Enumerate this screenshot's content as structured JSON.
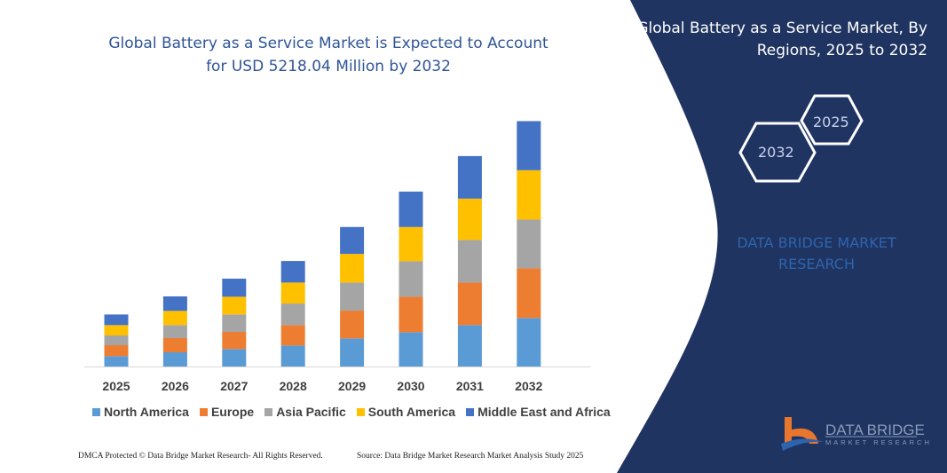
{
  "header": {
    "title": "Global Battery as a Service Market is Expected to Account for USD 5218.04 Million by 2032"
  },
  "side_panel": {
    "title": "Global Battery as a Service Market, By Regions, 2025 to 2032",
    "hex_start": "2025",
    "hex_end": "2032",
    "brand": "DATA BRIDGE MARKET RESEARCH",
    "logo_text": "DATA BRIDGE",
    "logo_sub": "MARKET RESEARCH",
    "background_color": "#1f3461"
  },
  "footer": {
    "left": "DMCA Protected © Data Bridge Market Research- All Rights Reserved.",
    "right": "Source: Data Bridge Market Research Market Analysis Study 2025"
  },
  "chart_data": {
    "type": "bar",
    "stacked": true,
    "title": "Global Battery as a Service Market is Expected to Account for USD 5218.04 Million by 2032",
    "unit": "USD Million",
    "categories": [
      "2025",
      "2026",
      "2027",
      "2028",
      "2029",
      "2030",
      "2031",
      "2032"
    ],
    "legend_position": "bottom",
    "grid": false,
    "series": [
      {
        "name": "North America",
        "color": "#5b9bd5",
        "values": [
          220,
          302,
          371,
          446,
          597,
          729,
          880,
          1031
        ]
      },
      {
        "name": "Europe",
        "color": "#ed7d31",
        "values": [
          233,
          302,
          365,
          434,
          591,
          754,
          905,
          1056
        ]
      },
      {
        "name": "Asia Pacific",
        "color": "#a5a5a5",
        "values": [
          207,
          277,
          371,
          459,
          597,
          754,
          905,
          1037
        ]
      },
      {
        "name": "South America",
        "color": "#ffc000",
        "values": [
          220,
          302,
          377,
          446,
          610,
          729,
          880,
          1050
        ]
      },
      {
        "name": "Middle East and Africa",
        "color": "#4472c4",
        "values": [
          226,
          308,
          384,
          459,
          572,
          754,
          905,
          1044
        ]
      }
    ]
  }
}
